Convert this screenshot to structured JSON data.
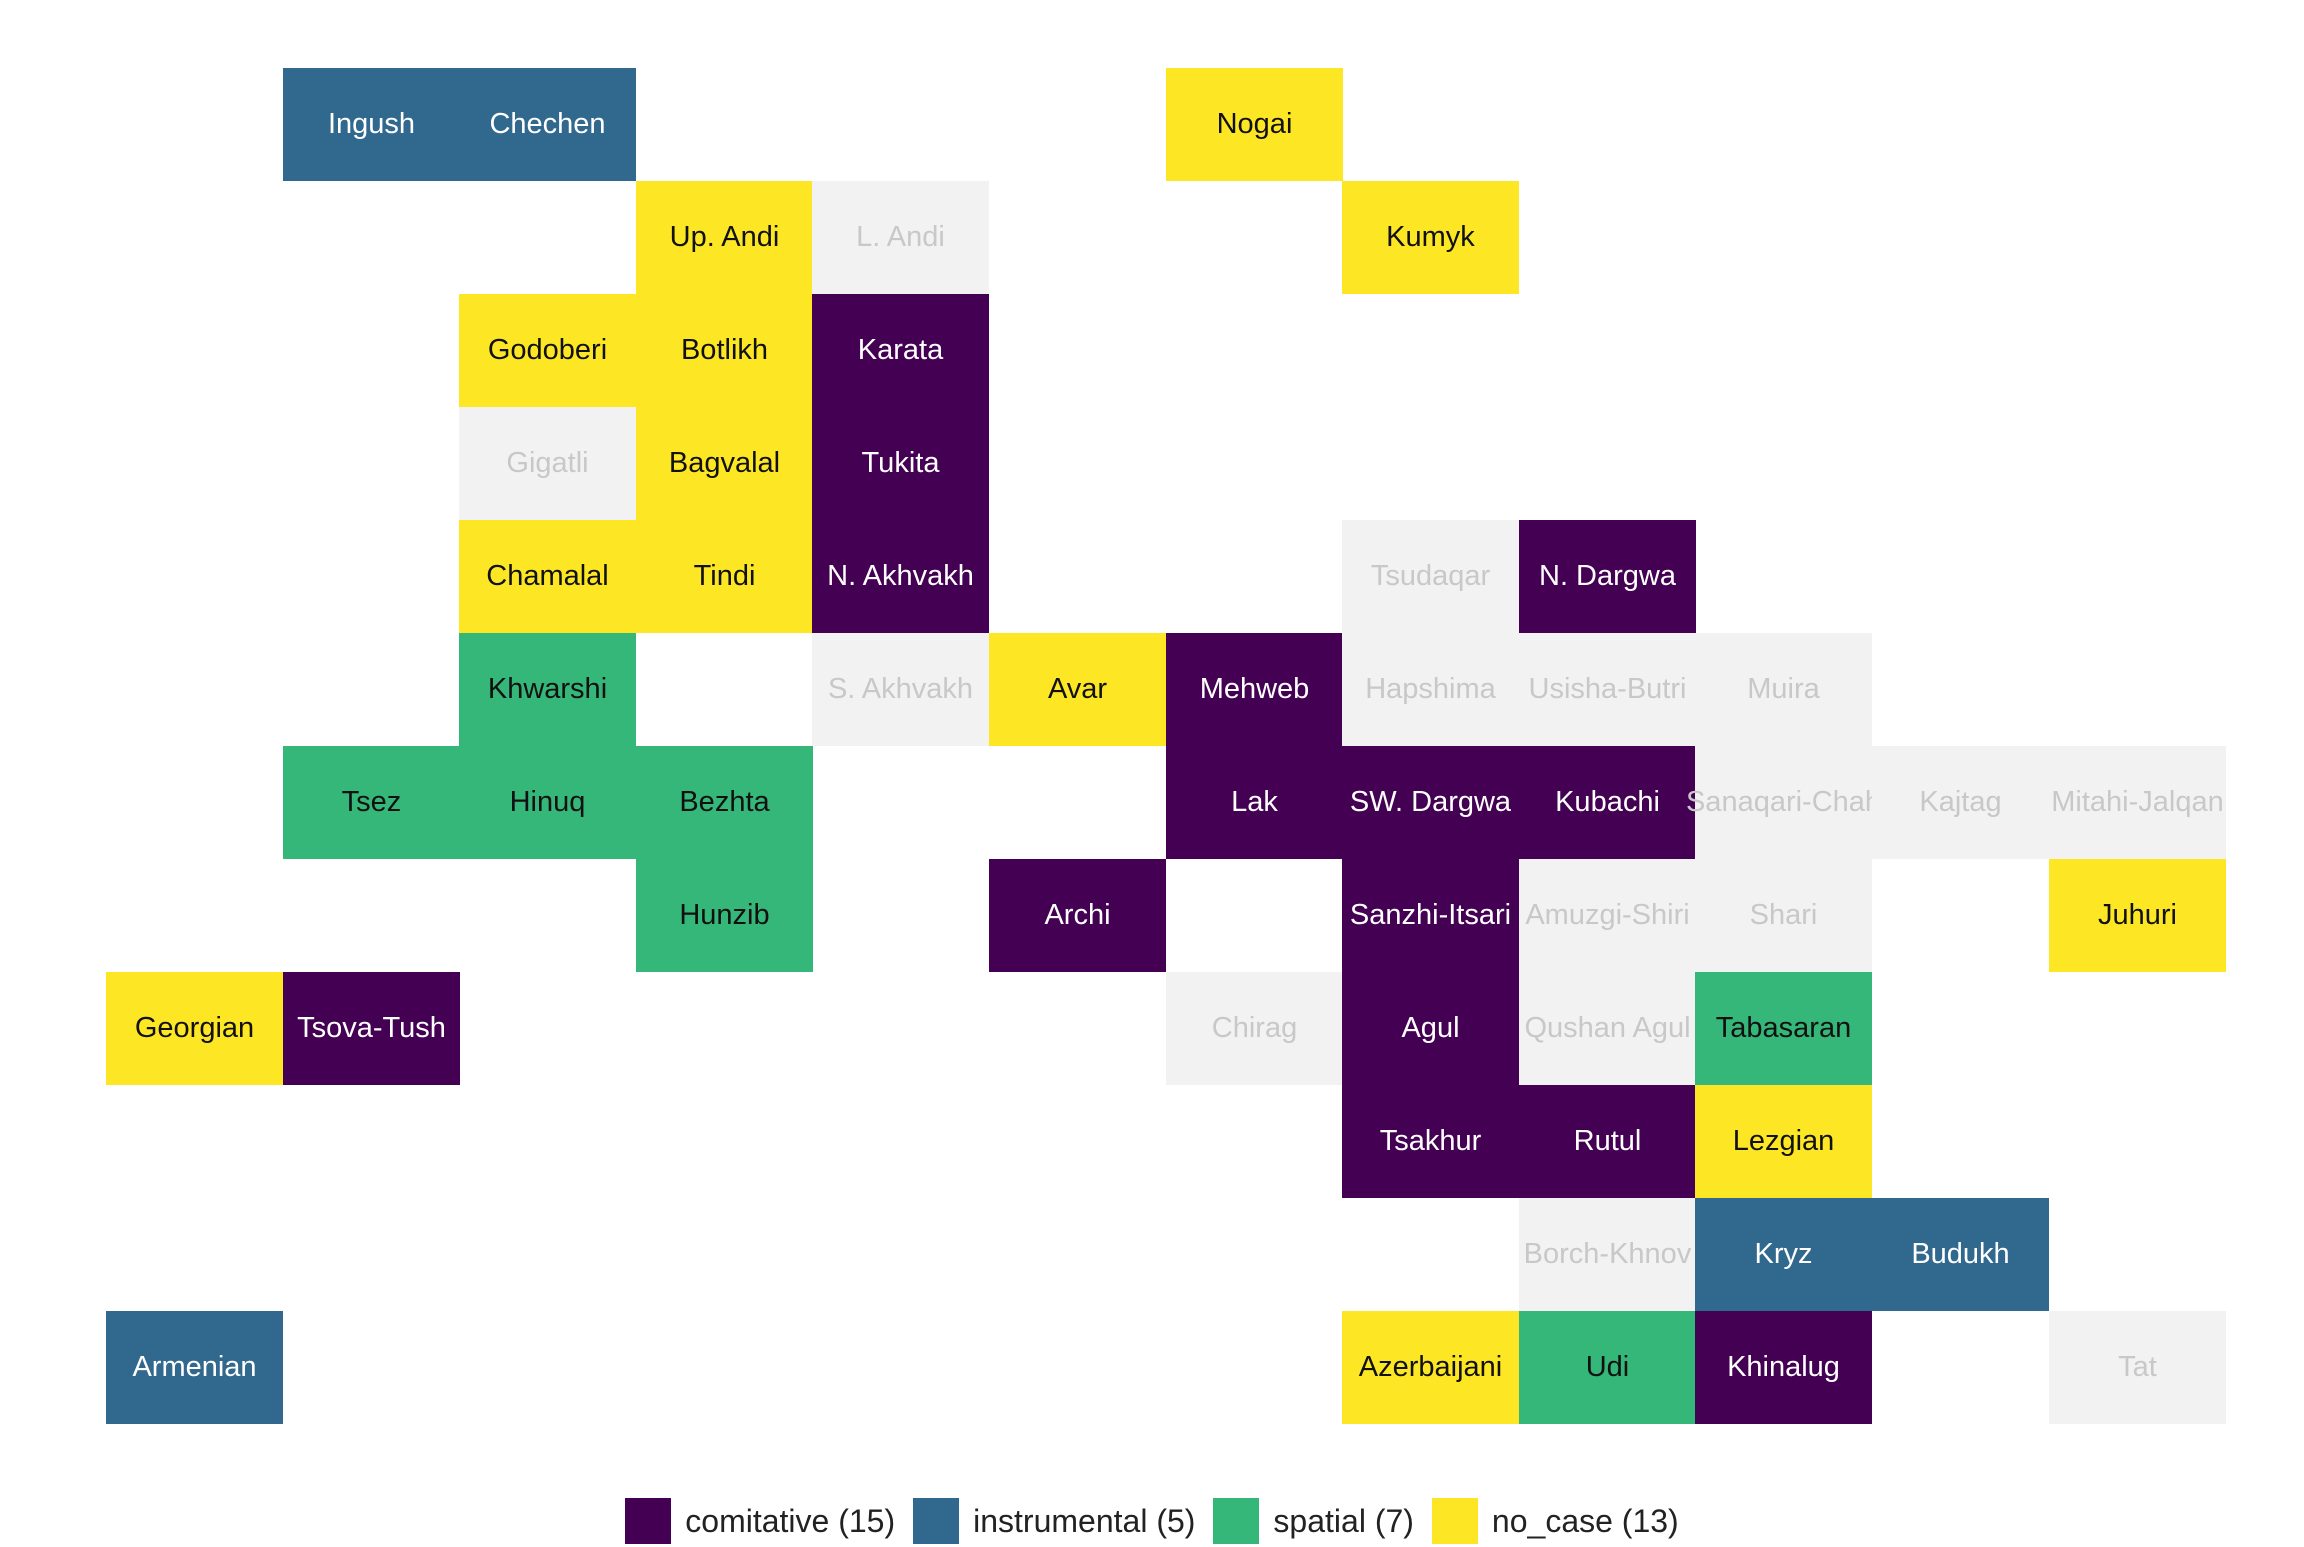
{
  "colors": {
    "comitative": "#440154",
    "instrumental": "#31688E",
    "spatial": "#35B779",
    "no_case": "#FDE725",
    "no_data": "#F2F2F2"
  },
  "text_colors": {
    "comitative": "#ffffff",
    "instrumental": "#ffffff",
    "spatial": "#111111",
    "no_case": "#111111",
    "no_data": "#C8C8C8"
  },
  "legend": [
    {
      "key": "comitative",
      "label": "comitative (15)"
    },
    {
      "key": "instrumental",
      "label": "instrumental (5)"
    },
    {
      "key": "spatial",
      "label": "spatial (7)"
    },
    {
      "key": "no_case",
      "label": "no_case (13)"
    }
  ],
  "grid": {
    "columns": 12,
    "rows": 12
  },
  "languages": [
    {
      "name": "Ingush",
      "col": 1,
      "row": 0,
      "category": "instrumental"
    },
    {
      "name": "Chechen",
      "col": 2,
      "row": 0,
      "category": "instrumental"
    },
    {
      "name": "Nogai",
      "col": 6,
      "row": 0,
      "category": "no_case"
    },
    {
      "name": "Up. Andi",
      "col": 3,
      "row": 1,
      "category": "no_case"
    },
    {
      "name": "L. Andi",
      "col": 4,
      "row": 1,
      "category": "no_data"
    },
    {
      "name": "Kumyk",
      "col": 7,
      "row": 1,
      "category": "no_case"
    },
    {
      "name": "Godoberi",
      "col": 2,
      "row": 2,
      "category": "no_case"
    },
    {
      "name": "Botlikh",
      "col": 3,
      "row": 2,
      "category": "no_case"
    },
    {
      "name": "Karata",
      "col": 4,
      "row": 2,
      "category": "comitative"
    },
    {
      "name": "Gigatli",
      "col": 2,
      "row": 3,
      "category": "no_data"
    },
    {
      "name": "Bagvalal",
      "col": 3,
      "row": 3,
      "category": "no_case"
    },
    {
      "name": "Tukita",
      "col": 4,
      "row": 3,
      "category": "comitative"
    },
    {
      "name": "Chamalal",
      "col": 2,
      "row": 4,
      "category": "no_case"
    },
    {
      "name": "Tindi",
      "col": 3,
      "row": 4,
      "category": "no_case"
    },
    {
      "name": "N. Akhvakh",
      "col": 4,
      "row": 4,
      "category": "comitative"
    },
    {
      "name": "Tsudaqar",
      "col": 7,
      "row": 4,
      "category": "no_data"
    },
    {
      "name": "N. Dargwa",
      "col": 8,
      "row": 4,
      "category": "comitative"
    },
    {
      "name": "Khwarshi",
      "col": 2,
      "row": 5,
      "category": "spatial"
    },
    {
      "name": "S. Akhvakh",
      "col": 4,
      "row": 5,
      "category": "no_data"
    },
    {
      "name": "Avar",
      "col": 5,
      "row": 5,
      "category": "no_case"
    },
    {
      "name": "Mehweb",
      "col": 6,
      "row": 5,
      "category": "comitative"
    },
    {
      "name": "Hapshima",
      "col": 7,
      "row": 5,
      "category": "no_data"
    },
    {
      "name": "Usisha-Butri",
      "col": 8,
      "row": 5,
      "category": "no_data"
    },
    {
      "name": "Muira",
      "col": 9,
      "row": 5,
      "category": "no_data"
    },
    {
      "name": "Tsez",
      "col": 1,
      "row": 6,
      "category": "spatial"
    },
    {
      "name": "Hinuq",
      "col": 2,
      "row": 6,
      "category": "spatial"
    },
    {
      "name": "Bezhta",
      "col": 3,
      "row": 6,
      "category": "spatial"
    },
    {
      "name": "Lak",
      "col": 6,
      "row": 6,
      "category": "comitative"
    },
    {
      "name": "SW. Dargwa",
      "col": 7,
      "row": 6,
      "category": "comitative"
    },
    {
      "name": "Kubachi",
      "col": 8,
      "row": 6,
      "category": "comitative"
    },
    {
      "name": "Sanaqari-Chah",
      "col": 9,
      "row": 6,
      "category": "no_data"
    },
    {
      "name": "Kajtag",
      "col": 10,
      "row": 6,
      "category": "no_data"
    },
    {
      "name": "Mitahi-Jalqan",
      "col": 11,
      "row": 6,
      "category": "no_data"
    },
    {
      "name": "Hunzib",
      "col": 3,
      "row": 7,
      "category": "spatial"
    },
    {
      "name": "Archi",
      "col": 5,
      "row": 7,
      "category": "comitative"
    },
    {
      "name": "Sanzhi-Itsari",
      "col": 7,
      "row": 7,
      "category": "comitative"
    },
    {
      "name": "Amuzgi-Shiri",
      "col": 8,
      "row": 7,
      "category": "no_data"
    },
    {
      "name": "Shari",
      "col": 9,
      "row": 7,
      "category": "no_data"
    },
    {
      "name": "Juhuri",
      "col": 11,
      "row": 7,
      "category": "no_case"
    },
    {
      "name": "Georgian",
      "col": 0,
      "row": 8,
      "category": "no_case"
    },
    {
      "name": "Tsova-Tush",
      "col": 1,
      "row": 8,
      "category": "comitative"
    },
    {
      "name": "Chirag",
      "col": 6,
      "row": 8,
      "category": "no_data"
    },
    {
      "name": "Agul",
      "col": 7,
      "row": 8,
      "category": "comitative"
    },
    {
      "name": "Qushan Agul",
      "col": 8,
      "row": 8,
      "category": "no_data"
    },
    {
      "name": "Tabasaran",
      "col": 9,
      "row": 8,
      "category": "spatial"
    },
    {
      "name": "Tsakhur",
      "col": 7,
      "row": 9,
      "category": "comitative"
    },
    {
      "name": "Rutul",
      "col": 8,
      "row": 9,
      "category": "comitative"
    },
    {
      "name": "Lezgian",
      "col": 9,
      "row": 9,
      "category": "no_case"
    },
    {
      "name": "Borch-Khnov",
      "col": 8,
      "row": 10,
      "category": "no_data"
    },
    {
      "name": "Kryz",
      "col": 9,
      "row": 10,
      "category": "instrumental"
    },
    {
      "name": "Budukh",
      "col": 10,
      "row": 10,
      "category": "instrumental"
    },
    {
      "name": "Armenian",
      "col": 0,
      "row": 11,
      "category": "instrumental"
    },
    {
      "name": "Azerbaijani",
      "col": 7,
      "row": 11,
      "category": "no_case"
    },
    {
      "name": "Udi",
      "col": 8,
      "row": 11,
      "category": "spatial"
    },
    {
      "name": "Khinalug",
      "col": 9,
      "row": 11,
      "category": "comitative"
    },
    {
      "name": "Tat",
      "col": 11,
      "row": 11,
      "category": "no_data"
    }
  ]
}
